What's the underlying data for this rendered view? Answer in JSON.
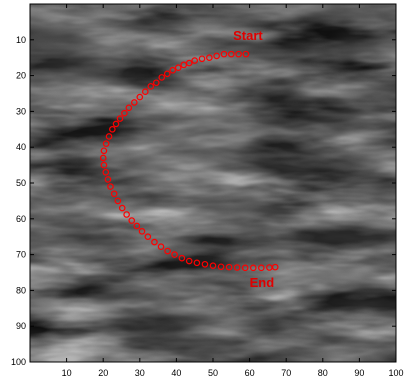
{
  "chart_data": {
    "type": "scatter",
    "title": "",
    "xlabel": "",
    "ylabel": "",
    "xlim": [
      0,
      100
    ],
    "ylim": [
      100,
      0
    ],
    "y_reversed": true,
    "grid": false,
    "legend": "none",
    "background": "grayscale image",
    "x_ticks": [
      "10",
      "20",
      "30",
      "40",
      "50",
      "60",
      "70",
      "80",
      "90",
      "100"
    ],
    "y_ticks": [
      "10",
      "20",
      "30",
      "40",
      "50",
      "60",
      "70",
      "80",
      "90",
      "100"
    ],
    "series": [
      {
        "marker": "open-circle",
        "color": "#ff0000",
        "points": [
          [
            59,
            14
          ],
          [
            57,
            14
          ],
          [
            55,
            14
          ],
          [
            53,
            14
          ],
          [
            51,
            14.5
          ],
          [
            49,
            15
          ],
          [
            47,
            15.3
          ],
          [
            45,
            15.8
          ],
          [
            43.5,
            16.5
          ],
          [
            42,
            17
          ],
          [
            40.5,
            17.8
          ],
          [
            39,
            18.5
          ],
          [
            37.5,
            19.5
          ],
          [
            36,
            20.5
          ],
          [
            34.5,
            22
          ],
          [
            33,
            23
          ],
          [
            31.5,
            24.5
          ],
          [
            30,
            26
          ],
          [
            28.5,
            27.5
          ],
          [
            27,
            29
          ],
          [
            25.8,
            30.5
          ],
          [
            24.6,
            32
          ],
          [
            23.5,
            33.5
          ],
          [
            22.5,
            35
          ],
          [
            21.6,
            37
          ],
          [
            20.8,
            39
          ],
          [
            20.2,
            41
          ],
          [
            20,
            43
          ],
          [
            20.2,
            45
          ],
          [
            20.7,
            47
          ],
          [
            21.3,
            49
          ],
          [
            22,
            51
          ],
          [
            23,
            53
          ],
          [
            24,
            55
          ],
          [
            25.2,
            57
          ],
          [
            26.4,
            58.8
          ],
          [
            27.8,
            60.5
          ],
          [
            29.2,
            62
          ],
          [
            30.6,
            63.5
          ],
          [
            32.2,
            65
          ],
          [
            34,
            66.5
          ],
          [
            35.8,
            67.8
          ],
          [
            37.6,
            69
          ],
          [
            39.5,
            70
          ],
          [
            41.5,
            71
          ],
          [
            43.5,
            71.8
          ],
          [
            45.6,
            72.3
          ],
          [
            47.8,
            72.7
          ],
          [
            50,
            73.1
          ],
          [
            52.2,
            73.4
          ],
          [
            54.4,
            73.5
          ],
          [
            56.6,
            73.6
          ],
          [
            58.8,
            73.7
          ],
          [
            61,
            73.7
          ],
          [
            63.2,
            73.7
          ],
          [
            65.4,
            73.6
          ],
          [
            67,
            73.5
          ]
        ]
      }
    ],
    "annotations": [
      {
        "text": "Start",
        "x": 55.5,
        "y": 10
      },
      {
        "text": "End",
        "x": 60,
        "y": 79
      }
    ],
    "colors": {
      "marker": "#ff0000",
      "annotation": "#e00000",
      "axis": "#000000"
    }
  }
}
